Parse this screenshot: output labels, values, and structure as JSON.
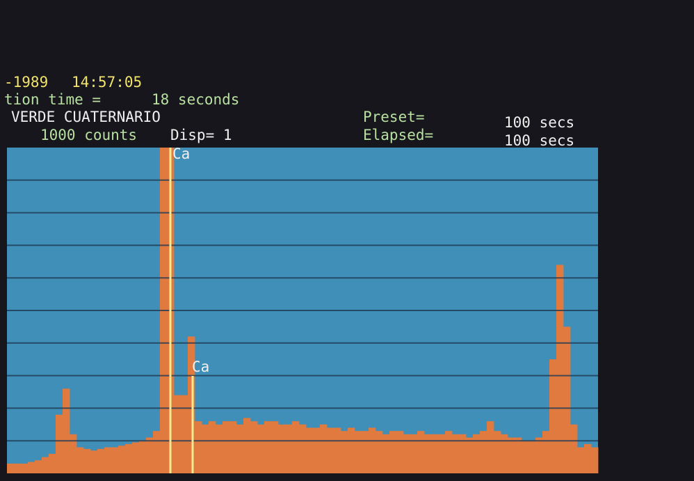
{
  "header": {
    "date": "-1989",
    "time": "14:57:05",
    "acquisition": "tion time =",
    "acq_time": "18 seconds",
    "sample": "VERDE CUATERNARIO",
    "scale": "1000 counts",
    "disp": "Disp= 1",
    "preset_label": "Preset=",
    "preset_value": "100 secs",
    "elapsed_label": "Elapsed=",
    "elapsed_value": "100 secs"
  },
  "peaks": [
    "Ca",
    "Ca"
  ],
  "chart_data": {
    "type": "spectrum",
    "color": "#e07a3e",
    "background": "#3f8fb8",
    "grid": true,
    "ylim": [
      0,
      10
    ],
    "yticks": [
      1,
      2,
      3,
      4,
      5,
      6,
      7,
      8,
      9
    ],
    "values": [
      0.3,
      0.3,
      0.3,
      0.35,
      0.4,
      0.5,
      0.6,
      1.8,
      2.6,
      1.2,
      0.8,
      0.75,
      0.7,
      0.75,
      0.8,
      0.8,
      0.85,
      0.9,
      0.95,
      1.0,
      1.1,
      1.3,
      10,
      10,
      2.4,
      2.4,
      4.2,
      1.6,
      1.5,
      1.6,
      1.5,
      1.6,
      1.6,
      1.5,
      1.7,
      1.6,
      1.5,
      1.6,
      1.6,
      1.5,
      1.5,
      1.6,
      1.5,
      1.4,
      1.4,
      1.5,
      1.4,
      1.4,
      1.3,
      1.4,
      1.3,
      1.3,
      1.4,
      1.3,
      1.2,
      1.3,
      1.3,
      1.2,
      1.2,
      1.3,
      1.2,
      1.2,
      1.2,
      1.3,
      1.2,
      1.2,
      1.1,
      1.2,
      1.3,
      1.6,
      1.3,
      1.2,
      1.1,
      1.1,
      1.0,
      1.0,
      1.1,
      1.3,
      3.5,
      6.4,
      4.5,
      1.5,
      0.8,
      0.9,
      0.8
    ]
  }
}
